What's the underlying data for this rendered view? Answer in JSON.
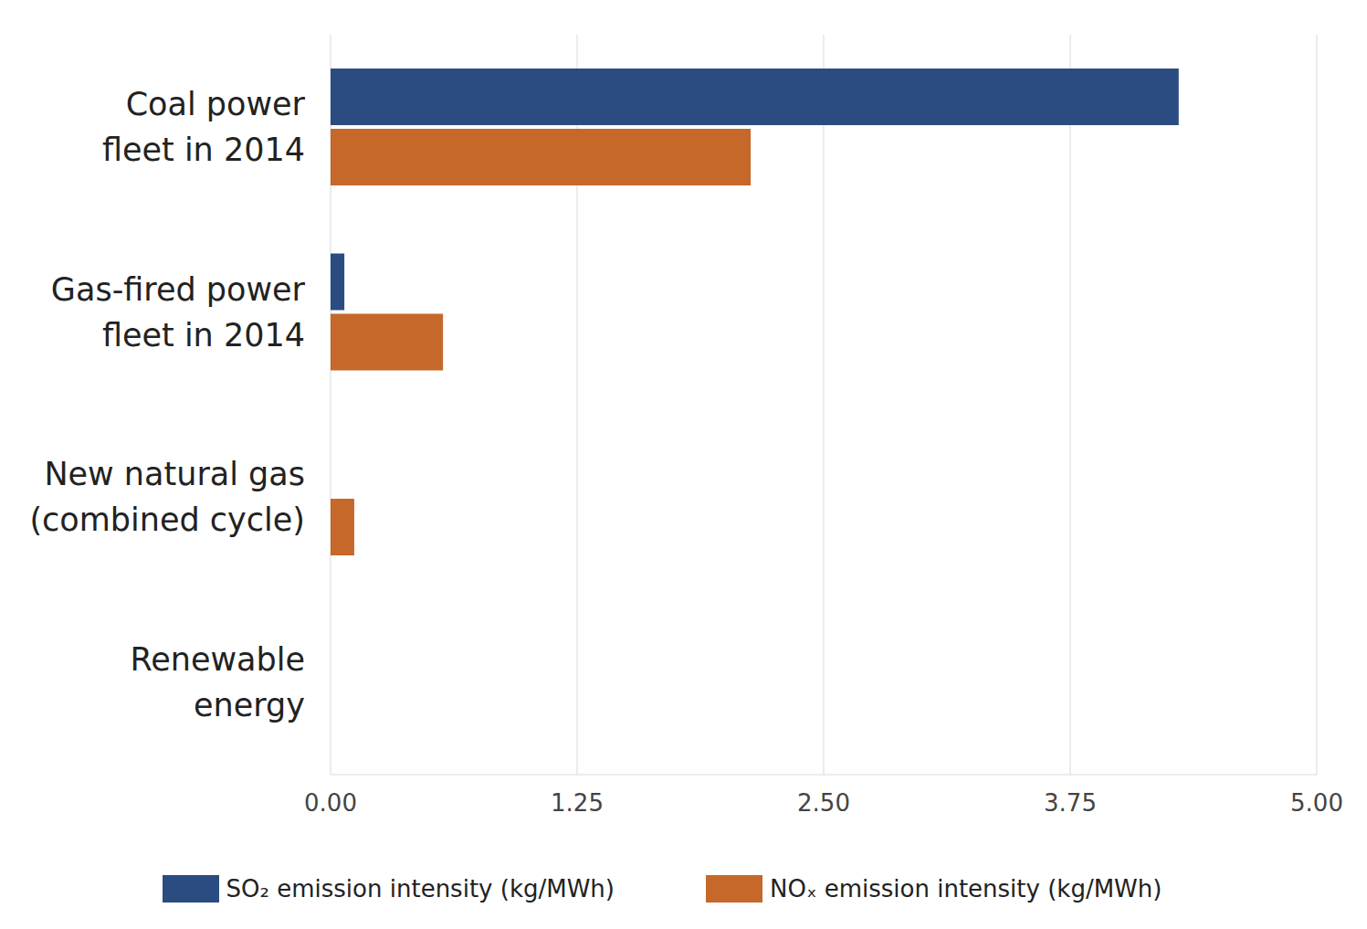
{
  "chart_data": {
    "type": "bar",
    "orientation": "horizontal",
    "categories": [
      "Coal power fleet in 2014",
      "Gas-fired power fleet in 2014",
      "New natural gas (combined cycle)",
      "Renewable energy"
    ],
    "series": [
      {
        "name": "SO₂ emission intensity (kg/MWh)",
        "color": "#2b4c80",
        "values": [
          4.3,
          0.07,
          0,
          0
        ]
      },
      {
        "name": "NOₓ emission intensity (kg/MWh)",
        "color": "#c5682a",
        "values": [
          2.13,
          0.57,
          0.12,
          0
        ]
      }
    ],
    "xlim": [
      0,
      5
    ],
    "xticks": [
      {
        "value": 0,
        "label": "0.00"
      },
      {
        "value": 1.25,
        "label": "1.25"
      },
      {
        "value": 2.5,
        "label": "2.50"
      },
      {
        "value": 3.75,
        "label": "3.75"
      },
      {
        "value": 5,
        "label": "5.00"
      }
    ],
    "grid": true,
    "legend": "bottom"
  }
}
